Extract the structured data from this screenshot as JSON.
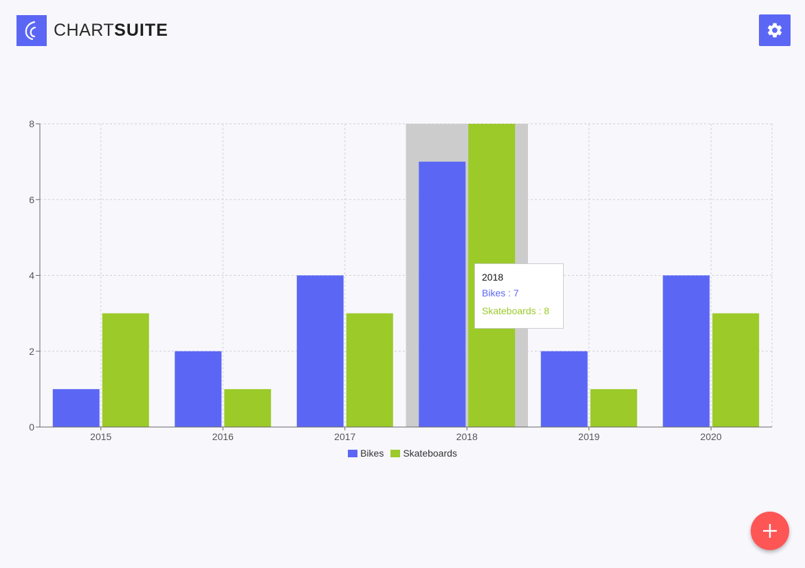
{
  "header": {
    "brand_light": "CHART",
    "brand_bold": "SUITE",
    "logo_icon": "chart-suite-logo-icon",
    "settings_icon": "gear-icon"
  },
  "colors": {
    "accent": "#5b67f4",
    "bikes": "#5b67f4",
    "skateboards": "#9bca29",
    "fab": "#fe5555",
    "highlight": "#cccccc"
  },
  "chart_data": {
    "type": "bar",
    "categories": [
      "2015",
      "2016",
      "2017",
      "2018",
      "2019",
      "2020"
    ],
    "series": [
      {
        "name": "Bikes",
        "values": [
          1,
          2,
          4,
          7,
          2,
          4
        ],
        "color": "#5b67f4"
      },
      {
        "name": "Skateboards",
        "values": [
          3,
          1,
          3,
          8,
          1,
          3
        ],
        "color": "#9bca29"
      }
    ],
    "ylim": [
      0,
      8
    ],
    "yticks": [
      0,
      2,
      4,
      6,
      8
    ],
    "grid": true,
    "legend_position": "bottom-center",
    "highlighted_category": "2018"
  },
  "tooltip": {
    "title": "2018",
    "bikes_text": "Bikes : 7",
    "skateboards_text": "Skateboards : 8"
  },
  "legend": {
    "bikes_label": "Bikes",
    "skateboards_label": "Skateboards"
  },
  "fab": {
    "icon": "plus-icon"
  }
}
